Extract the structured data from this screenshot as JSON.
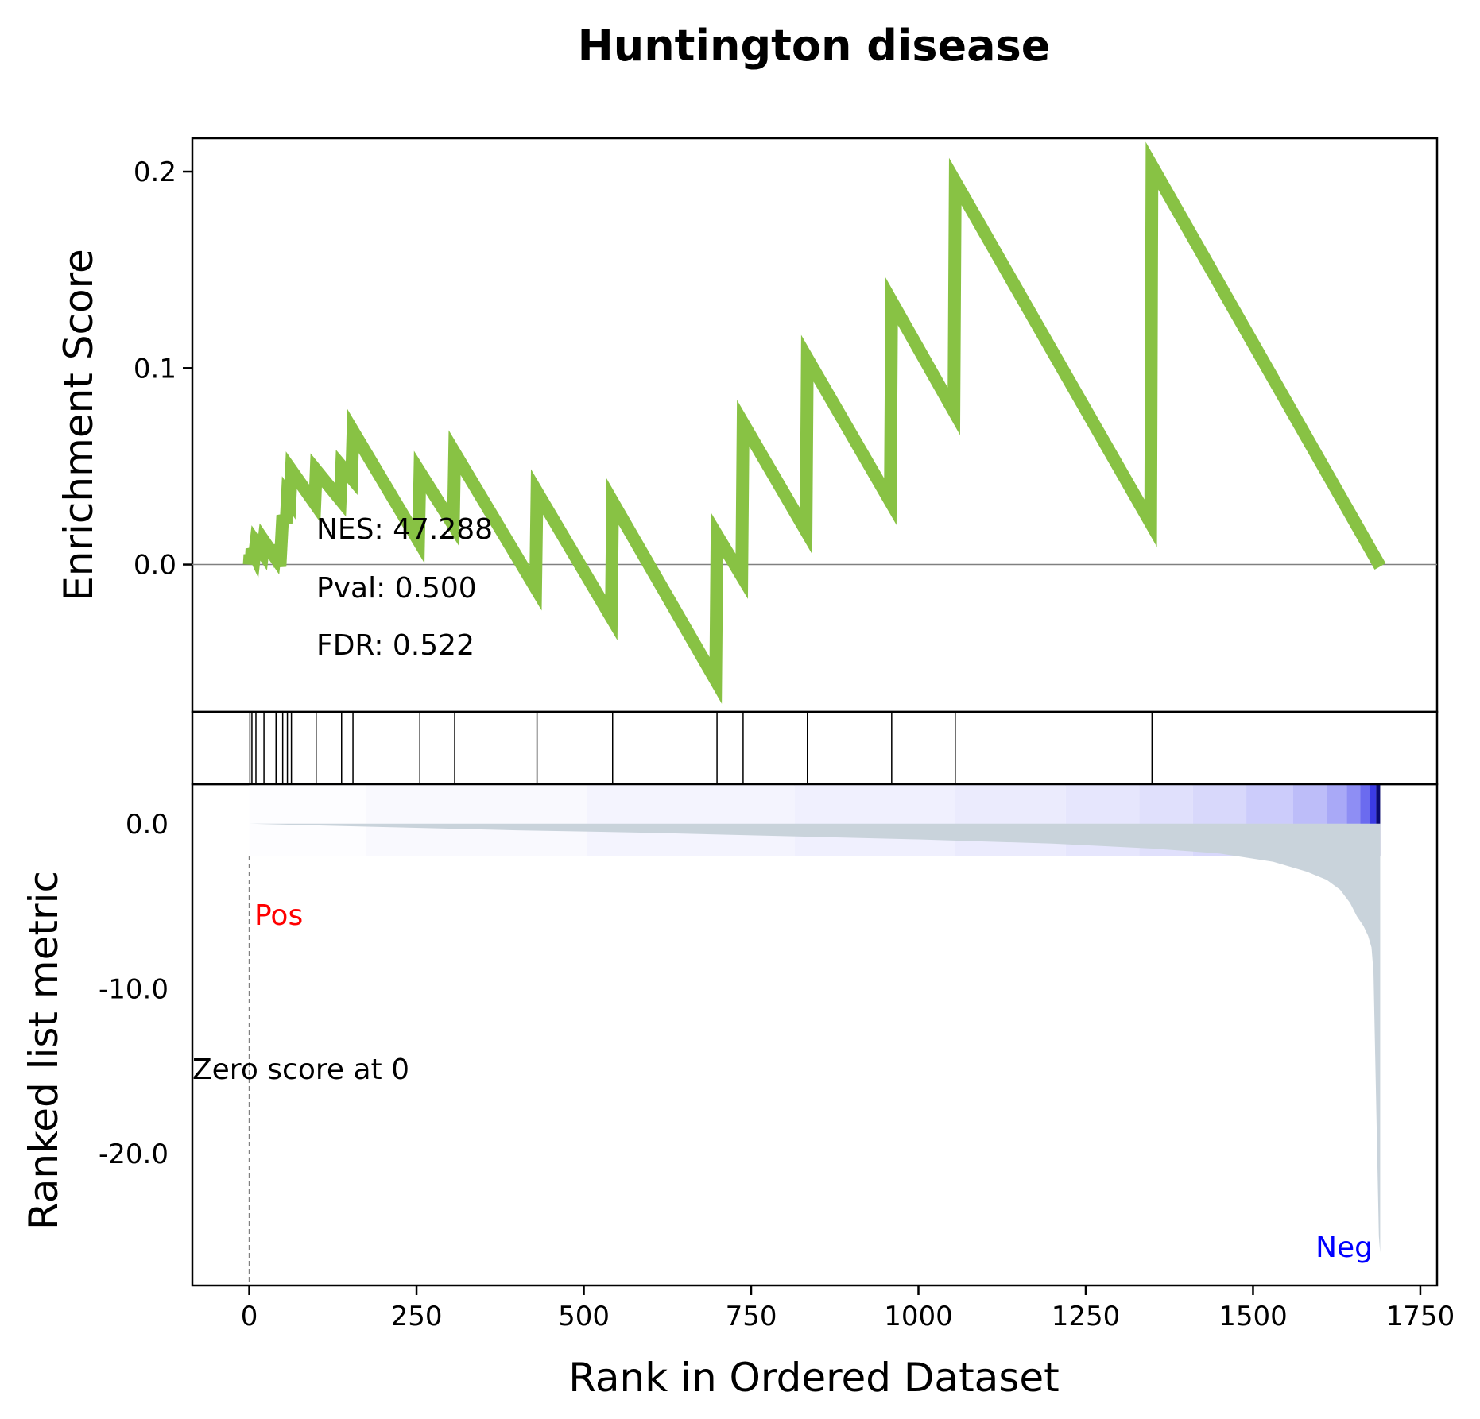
{
  "chart_data": {
    "type": "line",
    "title": "Huntington disease",
    "xlabel": "Rank in Ordered Dataset",
    "ylabel_top": "Enrichment Score",
    "ylabel_bottom": "Ranked list metric",
    "xlim": [
      -85,
      1775
    ],
    "xticks": [
      0,
      250,
      500,
      750,
      1000,
      1250,
      1500,
      1750
    ],
    "es_ylim": [
      -0.075,
      0.217
    ],
    "es_yticks": [
      0.0,
      0.1,
      0.2
    ],
    "es_ytick_labels": [
      "0.0",
      "0.1",
      "0.2"
    ],
    "metric_ylim": [
      -28,
      2.4
    ],
    "metric_yticks": [
      0,
      -10,
      -20
    ],
    "metric_ytick_labels": [
      "0.0",
      "-10.0",
      "-20.0"
    ],
    "es_color": "#88c244",
    "metric_fill_color": "#c9d3db",
    "stats": {
      "nes": "NES: 47.288",
      "pval": "Pval: 0.500",
      "fdr": "FDR: 0.522"
    },
    "pos_label": "Pos",
    "neg_label": "Neg",
    "zero_label": "Zero score at 0",
    "zero_rank": 0,
    "hits": [
      1,
      4,
      10,
      22,
      40,
      50,
      57,
      63,
      100,
      138,
      155,
      255,
      307,
      430,
      543,
      699,
      738,
      834,
      960,
      1055,
      1349
    ],
    "series": [
      {
        "name": "Enrichment Score",
        "points": [
          [
            0,
            0.0
          ],
          [
            1,
            0.005
          ],
          [
            3,
            0.002
          ],
          [
            4,
            0.008
          ],
          [
            8,
            0.005
          ],
          [
            10,
            0.011
          ],
          [
            20,
            0.006
          ],
          [
            22,
            0.012
          ],
          [
            38,
            0.004
          ],
          [
            40,
            0.01
          ],
          [
            46,
            -0.001
          ],
          [
            50,
            0.025
          ],
          [
            55,
            0.021
          ],
          [
            57,
            0.035
          ],
          [
            61,
            0.033
          ],
          [
            63,
            0.048
          ],
          [
            98,
            0.031
          ],
          [
            100,
            0.048
          ],
          [
            136,
            0.033
          ],
          [
            138,
            0.05
          ],
          [
            153,
            0.044
          ],
          [
            155,
            0.068
          ],
          [
            253,
            0.012
          ],
          [
            255,
            0.047
          ],
          [
            305,
            0.02
          ],
          [
            307,
            0.057
          ],
          [
            428,
            -0.012
          ],
          [
            430,
            0.037
          ],
          [
            541,
            -0.027
          ],
          [
            543,
            0.032
          ],
          [
            697,
            -0.059
          ],
          [
            699,
            0.015
          ],
          [
            736,
            -0.006
          ],
          [
            738,
            0.072
          ],
          [
            832,
            0.017
          ],
          [
            834,
            0.105
          ],
          [
            958,
            0.032
          ],
          [
            960,
            0.134
          ],
          [
            1053,
            0.078
          ],
          [
            1055,
            0.195
          ],
          [
            1347,
            0.021
          ],
          [
            1349,
            0.203
          ],
          [
            1690,
            -0.001
          ]
        ]
      },
      {
        "name": "Ranked list metric",
        "points": [
          [
            0,
            0.0
          ],
          [
            200,
            -0.2
          ],
          [
            400,
            -0.4
          ],
          [
            600,
            -0.55
          ],
          [
            800,
            -0.75
          ],
          [
            1000,
            -0.95
          ],
          [
            1200,
            -1.2
          ],
          [
            1350,
            -1.5
          ],
          [
            1450,
            -1.8
          ],
          [
            1530,
            -2.3
          ],
          [
            1580,
            -2.9
          ],
          [
            1610,
            -3.4
          ],
          [
            1630,
            -4.0
          ],
          [
            1645,
            -4.8
          ],
          [
            1655,
            -5.6
          ],
          [
            1665,
            -6.2
          ],
          [
            1672,
            -6.8
          ],
          [
            1677,
            -7.5
          ],
          [
            1680,
            -9.0
          ],
          [
            1682,
            -13.0
          ],
          [
            1684,
            -17.0
          ],
          [
            1686,
            -21.0
          ],
          [
            1688,
            -25.0
          ],
          [
            1690,
            -26.0
          ]
        ]
      }
    ],
    "heat_bands": [
      {
        "from": 0,
        "to": 175,
        "color": "#fdfdff"
      },
      {
        "from": 175,
        "to": 505,
        "color": "#f9f9fe"
      },
      {
        "from": 505,
        "to": 815,
        "color": "#f4f4fe"
      },
      {
        "from": 815,
        "to": 1055,
        "color": "#f0f0fe"
      },
      {
        "from": 1055,
        "to": 1220,
        "color": "#ebebfd"
      },
      {
        "from": 1220,
        "to": 1330,
        "color": "#e6e6fd"
      },
      {
        "from": 1330,
        "to": 1410,
        "color": "#e0e0fc"
      },
      {
        "from": 1410,
        "to": 1490,
        "color": "#d8d8fb"
      },
      {
        "from": 1490,
        "to": 1560,
        "color": "#ccccfb"
      },
      {
        "from": 1560,
        "to": 1610,
        "color": "#bdbdf9"
      },
      {
        "from": 1610,
        "to": 1640,
        "color": "#a9a9f7"
      },
      {
        "from": 1640,
        "to": 1660,
        "color": "#8e8ef4"
      },
      {
        "from": 1660,
        "to": 1675,
        "color": "#6b6bef"
      },
      {
        "from": 1675,
        "to": 1684,
        "color": "#3b3be5"
      },
      {
        "from": 1684,
        "to": 1690,
        "color": "#0a0a70"
      }
    ]
  }
}
